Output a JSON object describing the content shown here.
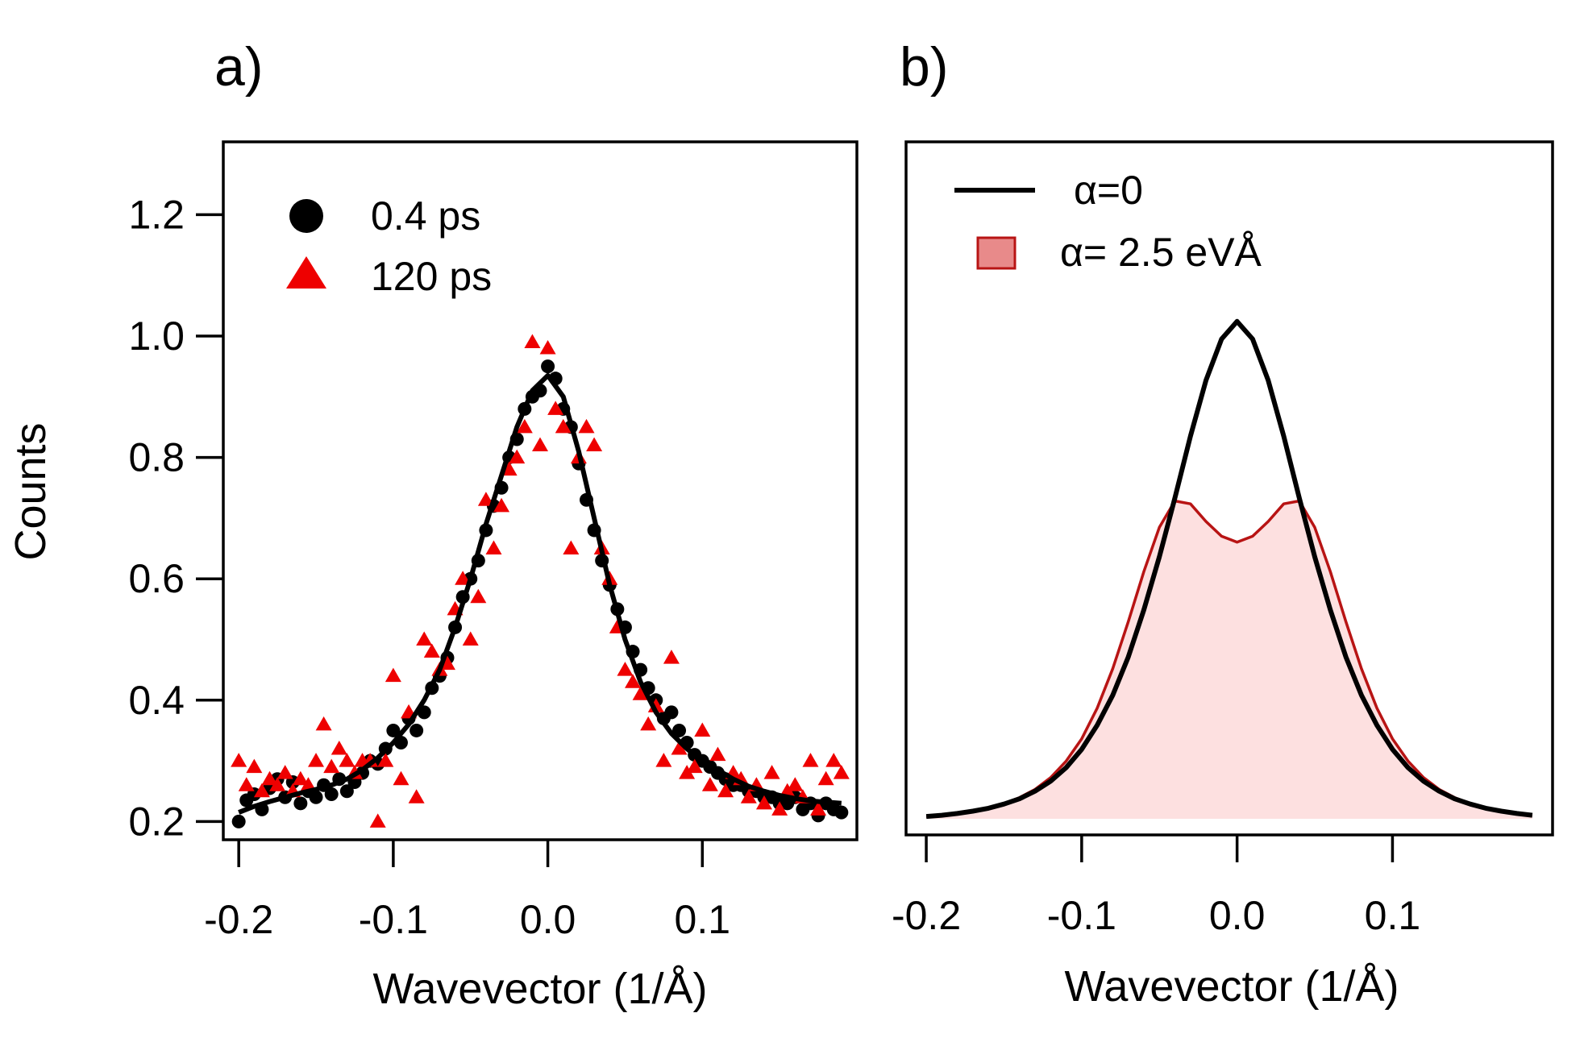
{
  "chart_data": [
    {
      "type": "scatter",
      "panel_label": "a)",
      "xlabel": "Wavevector (1/Å)",
      "ylabel": "Counts",
      "xlim": [
        -0.21,
        0.2
      ],
      "ylim": [
        0.17,
        1.32
      ],
      "xticks": [
        -0.2,
        -0.1,
        0.0,
        0.1
      ],
      "xtick_labels": [
        "-0.2",
        "-0.1",
        "0.0",
        "0.1"
      ],
      "yticks": [
        0.2,
        0.4,
        0.6,
        0.8,
        1.0,
        1.2
      ],
      "ytick_labels": [
        "0.2",
        "0.4",
        "0.6",
        "0.8",
        "1.0",
        "1.2"
      ],
      "grid": false,
      "legend": {
        "position": "top-left",
        "entries": [
          {
            "label": "0.4 ps",
            "marker": "circle",
            "color": "#000000"
          },
          {
            "label": "120 ps",
            "marker": "triangle",
            "color": "#ee0000"
          }
        ]
      },
      "fit": {
        "name": "fit",
        "color": "#000000",
        "x": [
          -0.2,
          -0.19,
          -0.18,
          -0.17,
          -0.16,
          -0.15,
          -0.14,
          -0.13,
          -0.12,
          -0.11,
          -0.1,
          -0.09,
          -0.08,
          -0.07,
          -0.06,
          -0.05,
          -0.04,
          -0.03,
          -0.02,
          -0.01,
          0.0,
          0.01,
          0.02,
          0.03,
          0.04,
          0.05,
          0.06,
          0.07,
          0.08,
          0.09,
          0.1,
          0.11,
          0.12,
          0.13,
          0.14,
          0.15,
          0.16,
          0.17,
          0.18,
          0.19
        ],
        "y": [
          0.215,
          0.225,
          0.233,
          0.24,
          0.247,
          0.253,
          0.26,
          0.27,
          0.285,
          0.305,
          0.33,
          0.36,
          0.4,
          0.45,
          0.52,
          0.6,
          0.69,
          0.77,
          0.85,
          0.91,
          0.935,
          0.9,
          0.81,
          0.7,
          0.59,
          0.5,
          0.43,
          0.38,
          0.345,
          0.32,
          0.3,
          0.285,
          0.27,
          0.258,
          0.25,
          0.243,
          0.238,
          0.234,
          0.232,
          0.23
        ]
      },
      "series": [
        {
          "name": "0.4 ps",
          "marker": "circle",
          "color": "#000000",
          "x": [
            -0.2,
            -0.195,
            -0.19,
            -0.185,
            -0.18,
            -0.175,
            -0.17,
            -0.165,
            -0.16,
            -0.155,
            -0.15,
            -0.145,
            -0.14,
            -0.135,
            -0.13,
            -0.125,
            -0.12,
            -0.115,
            -0.11,
            -0.105,
            -0.1,
            -0.095,
            -0.09,
            -0.085,
            -0.08,
            -0.075,
            -0.07,
            -0.065,
            -0.06,
            -0.055,
            -0.05,
            -0.045,
            -0.04,
            -0.035,
            -0.03,
            -0.025,
            -0.02,
            -0.015,
            -0.01,
            -0.005,
            0.0,
            0.005,
            0.01,
            0.015,
            0.02,
            0.025,
            0.03,
            0.035,
            0.04,
            0.045,
            0.05,
            0.055,
            0.06,
            0.065,
            0.07,
            0.075,
            0.08,
            0.085,
            0.09,
            0.095,
            0.1,
            0.105,
            0.11,
            0.115,
            0.12,
            0.125,
            0.13,
            0.135,
            0.14,
            0.145,
            0.15,
            0.155,
            0.16,
            0.165,
            0.17,
            0.175,
            0.18,
            0.185,
            0.19
          ],
          "y": [
            0.2,
            0.235,
            0.245,
            0.22,
            0.255,
            0.27,
            0.24,
            0.265,
            0.23,
            0.25,
            0.24,
            0.26,
            0.245,
            0.27,
            0.25,
            0.265,
            0.28,
            0.3,
            0.295,
            0.32,
            0.35,
            0.33,
            0.37,
            0.35,
            0.38,
            0.42,
            0.44,
            0.47,
            0.52,
            0.57,
            0.6,
            0.63,
            0.68,
            0.72,
            0.75,
            0.8,
            0.83,
            0.88,
            0.9,
            0.91,
            0.95,
            0.93,
            0.88,
            0.85,
            0.79,
            0.73,
            0.68,
            0.63,
            0.59,
            0.55,
            0.52,
            0.48,
            0.45,
            0.42,
            0.4,
            0.37,
            0.38,
            0.35,
            0.33,
            0.31,
            0.3,
            0.29,
            0.28,
            0.27,
            0.26,
            0.26,
            0.25,
            0.25,
            0.24,
            0.24,
            0.23,
            0.23,
            0.24,
            0.22,
            0.23,
            0.21,
            0.23,
            0.22,
            0.215
          ]
        },
        {
          "name": "120 ps",
          "marker": "triangle",
          "color": "#ee0000",
          "x": [
            -0.2,
            -0.195,
            -0.19,
            -0.185,
            -0.18,
            -0.175,
            -0.17,
            -0.165,
            -0.16,
            -0.155,
            -0.15,
            -0.145,
            -0.14,
            -0.135,
            -0.13,
            -0.125,
            -0.12,
            -0.115,
            -0.11,
            -0.105,
            -0.1,
            -0.095,
            -0.09,
            -0.085,
            -0.08,
            -0.075,
            -0.07,
            -0.065,
            -0.06,
            -0.055,
            -0.05,
            -0.045,
            -0.04,
            -0.035,
            -0.03,
            -0.025,
            -0.02,
            -0.015,
            -0.01,
            -0.005,
            0.0,
            0.005,
            0.01,
            0.015,
            0.02,
            0.025,
            0.03,
            0.035,
            0.04,
            0.045,
            0.05,
            0.055,
            0.06,
            0.065,
            0.07,
            0.075,
            0.08,
            0.085,
            0.09,
            0.095,
            0.1,
            0.105,
            0.11,
            0.115,
            0.12,
            0.125,
            0.13,
            0.135,
            0.14,
            0.145,
            0.15,
            0.155,
            0.16,
            0.165,
            0.17,
            0.175,
            0.18,
            0.185,
            0.19
          ],
          "y": [
            0.3,
            0.26,
            0.29,
            0.25,
            0.27,
            0.26,
            0.28,
            0.25,
            0.27,
            0.26,
            0.3,
            0.36,
            0.29,
            0.32,
            0.3,
            0.28,
            0.3,
            0.3,
            0.2,
            0.3,
            0.44,
            0.27,
            0.38,
            0.24,
            0.5,
            0.48,
            0.45,
            0.46,
            0.55,
            0.6,
            0.5,
            0.57,
            0.73,
            0.65,
            0.72,
            0.78,
            0.8,
            0.85,
            0.99,
            0.82,
            0.98,
            0.88,
            0.85,
            0.65,
            0.8,
            0.85,
            0.82,
            0.65,
            0.6,
            0.52,
            0.45,
            0.43,
            0.41,
            0.36,
            0.39,
            0.3,
            0.47,
            0.32,
            0.28,
            0.29,
            0.35,
            0.26,
            0.31,
            0.25,
            0.28,
            0.27,
            0.24,
            0.26,
            0.23,
            0.28,
            0.22,
            0.25,
            0.26,
            0.24,
            0.3,
            0.22,
            0.27,
            0.3,
            0.28
          ]
        }
      ]
    },
    {
      "type": "line",
      "panel_label": "b)",
      "xlabel": "Wavevector (1/Å)",
      "ylabel": "",
      "xlim": [
        -0.213,
        0.203
      ],
      "ylim": [
        0.0,
        1.15
      ],
      "xticks": [
        -0.2,
        -0.1,
        0.0,
        0.1
      ],
      "xtick_labels": [
        "-0.2",
        "-0.1",
        "0.0",
        "0.1"
      ],
      "yticks": [],
      "grid": false,
      "legend": {
        "position": "top-left",
        "entries": [
          {
            "label": "α=0",
            "style": "line",
            "color": "#000000"
          },
          {
            "label": "α= 2.5 eVÅ",
            "style": "filled-area",
            "color": "#b81414",
            "fill": "#fde0e0"
          }
        ]
      },
      "series": [
        {
          "name": "α=0",
          "color": "#000000",
          "x": [
            -0.2,
            -0.19,
            -0.18,
            -0.17,
            -0.16,
            -0.15,
            -0.14,
            -0.13,
            -0.12,
            -0.11,
            -0.1,
            -0.09,
            -0.08,
            -0.07,
            -0.06,
            -0.05,
            -0.04,
            -0.03,
            -0.02,
            -0.01,
            0.0,
            0.01,
            0.02,
            0.03,
            0.04,
            0.05,
            0.06,
            0.07,
            0.08,
            0.09,
            0.1,
            0.11,
            0.12,
            0.13,
            0.14,
            0.15,
            0.16,
            0.17,
            0.18,
            0.19
          ],
          "y": [
            0.004,
            0.006,
            0.009,
            0.013,
            0.018,
            0.025,
            0.034,
            0.047,
            0.064,
            0.087,
            0.118,
            0.159,
            0.21,
            0.275,
            0.355,
            0.445,
            0.545,
            0.65,
            0.745,
            0.815,
            0.845,
            0.815,
            0.745,
            0.65,
            0.545,
            0.445,
            0.355,
            0.275,
            0.21,
            0.159,
            0.118,
            0.087,
            0.064,
            0.047,
            0.034,
            0.025,
            0.018,
            0.013,
            0.009,
            0.006
          ]
        },
        {
          "name": "α= 2.5 eVÅ",
          "color": "#b81414",
          "fill": "#fde0e0",
          "x": [
            -0.2,
            -0.19,
            -0.18,
            -0.17,
            -0.16,
            -0.15,
            -0.14,
            -0.13,
            -0.12,
            -0.11,
            -0.1,
            -0.09,
            -0.08,
            -0.07,
            -0.06,
            -0.05,
            -0.04,
            -0.03,
            -0.02,
            -0.01,
            0.0,
            0.01,
            0.02,
            0.03,
            0.04,
            0.05,
            0.06,
            0.07,
            0.08,
            0.09,
            0.1,
            0.11,
            0.12,
            0.13,
            0.14,
            0.15,
            0.16,
            0.17,
            0.18,
            0.19
          ],
          "y": [
            0.004,
            0.006,
            0.009,
            0.013,
            0.018,
            0.026,
            0.036,
            0.05,
            0.07,
            0.098,
            0.136,
            0.188,
            0.255,
            0.335,
            0.42,
            0.495,
            0.54,
            0.535,
            0.505,
            0.48,
            0.47,
            0.48,
            0.505,
            0.535,
            0.54,
            0.495,
            0.42,
            0.335,
            0.255,
            0.188,
            0.136,
            0.098,
            0.07,
            0.05,
            0.036,
            0.026,
            0.018,
            0.013,
            0.009,
            0.006
          ]
        }
      ]
    }
  ]
}
